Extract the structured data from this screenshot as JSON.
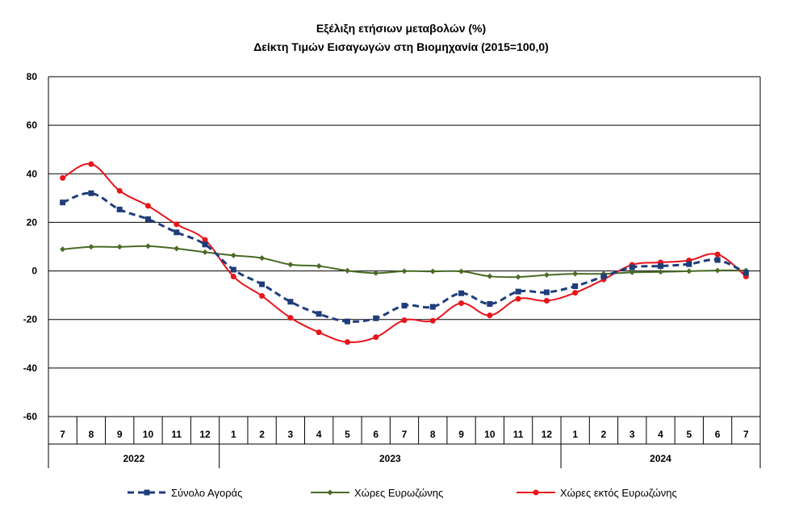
{
  "chart_data": {
    "type": "line",
    "title": "Εξέλιξη ετήσιων μεταβολών (%)",
    "subtitle": "Δείκτη Τιμών Εισαγωγών στη Βιομηχανία (2015=100,0)",
    "xlabel": "",
    "ylabel": "",
    "ylim": [
      -60,
      80
    ],
    "yticks": [
      "80",
      "60",
      "40",
      "20",
      "0",
      "-20",
      "-40",
      "-60"
    ],
    "categories": [
      "7",
      "8",
      "9",
      "10",
      "11",
      "12",
      "1",
      "2",
      "3",
      "4",
      "5",
      "6",
      "7",
      "8",
      "9",
      "10",
      "11",
      "12",
      "1",
      "2",
      "3",
      "4",
      "5",
      "6",
      "7"
    ],
    "years": [
      {
        "label": "2022",
        "start": 0,
        "end": 5
      },
      {
        "label": "2023",
        "start": 6,
        "end": 17
      },
      {
        "label": "2024",
        "start": 18,
        "end": 24
      }
    ],
    "grid": true,
    "legend": "bottom",
    "series": [
      {
        "name": "Σύνολο Αγοράς",
        "color": "#1f3d7a",
        "style": "dashed",
        "marker": "square",
        "values": [
          28.2,
          32.0,
          25.3,
          21.3,
          15.9,
          10.9,
          0.5,
          -5.5,
          -12.7,
          -17.7,
          -20.8,
          -19.5,
          -14.3,
          -14.8,
          -9.2,
          -13.6,
          -8.5,
          -8.8,
          -6.3,
          -2.3,
          1.5,
          2.0,
          2.8,
          4.5,
          -0.8
        ]
      },
      {
        "name": "Χώρες Ευρωζώνης",
        "color": "#4a6b26",
        "style": "solid",
        "marker": "diamond",
        "values": [
          8.9,
          9.9,
          9.9,
          10.2,
          9.2,
          7.7,
          6.4,
          5.3,
          2.6,
          2.0,
          0.1,
          -0.9,
          -0.1,
          -0.2,
          -0.2,
          -2.2,
          -2.5,
          -1.7,
          -1.2,
          -1.2,
          -0.6,
          -0.4,
          -0.1,
          0.2,
          0.2
        ]
      },
      {
        "name": "Χώρες εκτός Ευρωζώνης",
        "color": "#e8141c",
        "style": "solid",
        "marker": "circle",
        "values": [
          38.3,
          44.0,
          33.0,
          26.8,
          19.2,
          12.8,
          -2.3,
          -10.3,
          -19.3,
          -25.3,
          -29.3,
          -27.3,
          -20.3,
          -20.5,
          -13.3,
          -18.3,
          -11.5,
          -12.3,
          -9.0,
          -3.5,
          2.5,
          3.5,
          4.3,
          6.8,
          -2.3
        ]
      }
    ]
  }
}
